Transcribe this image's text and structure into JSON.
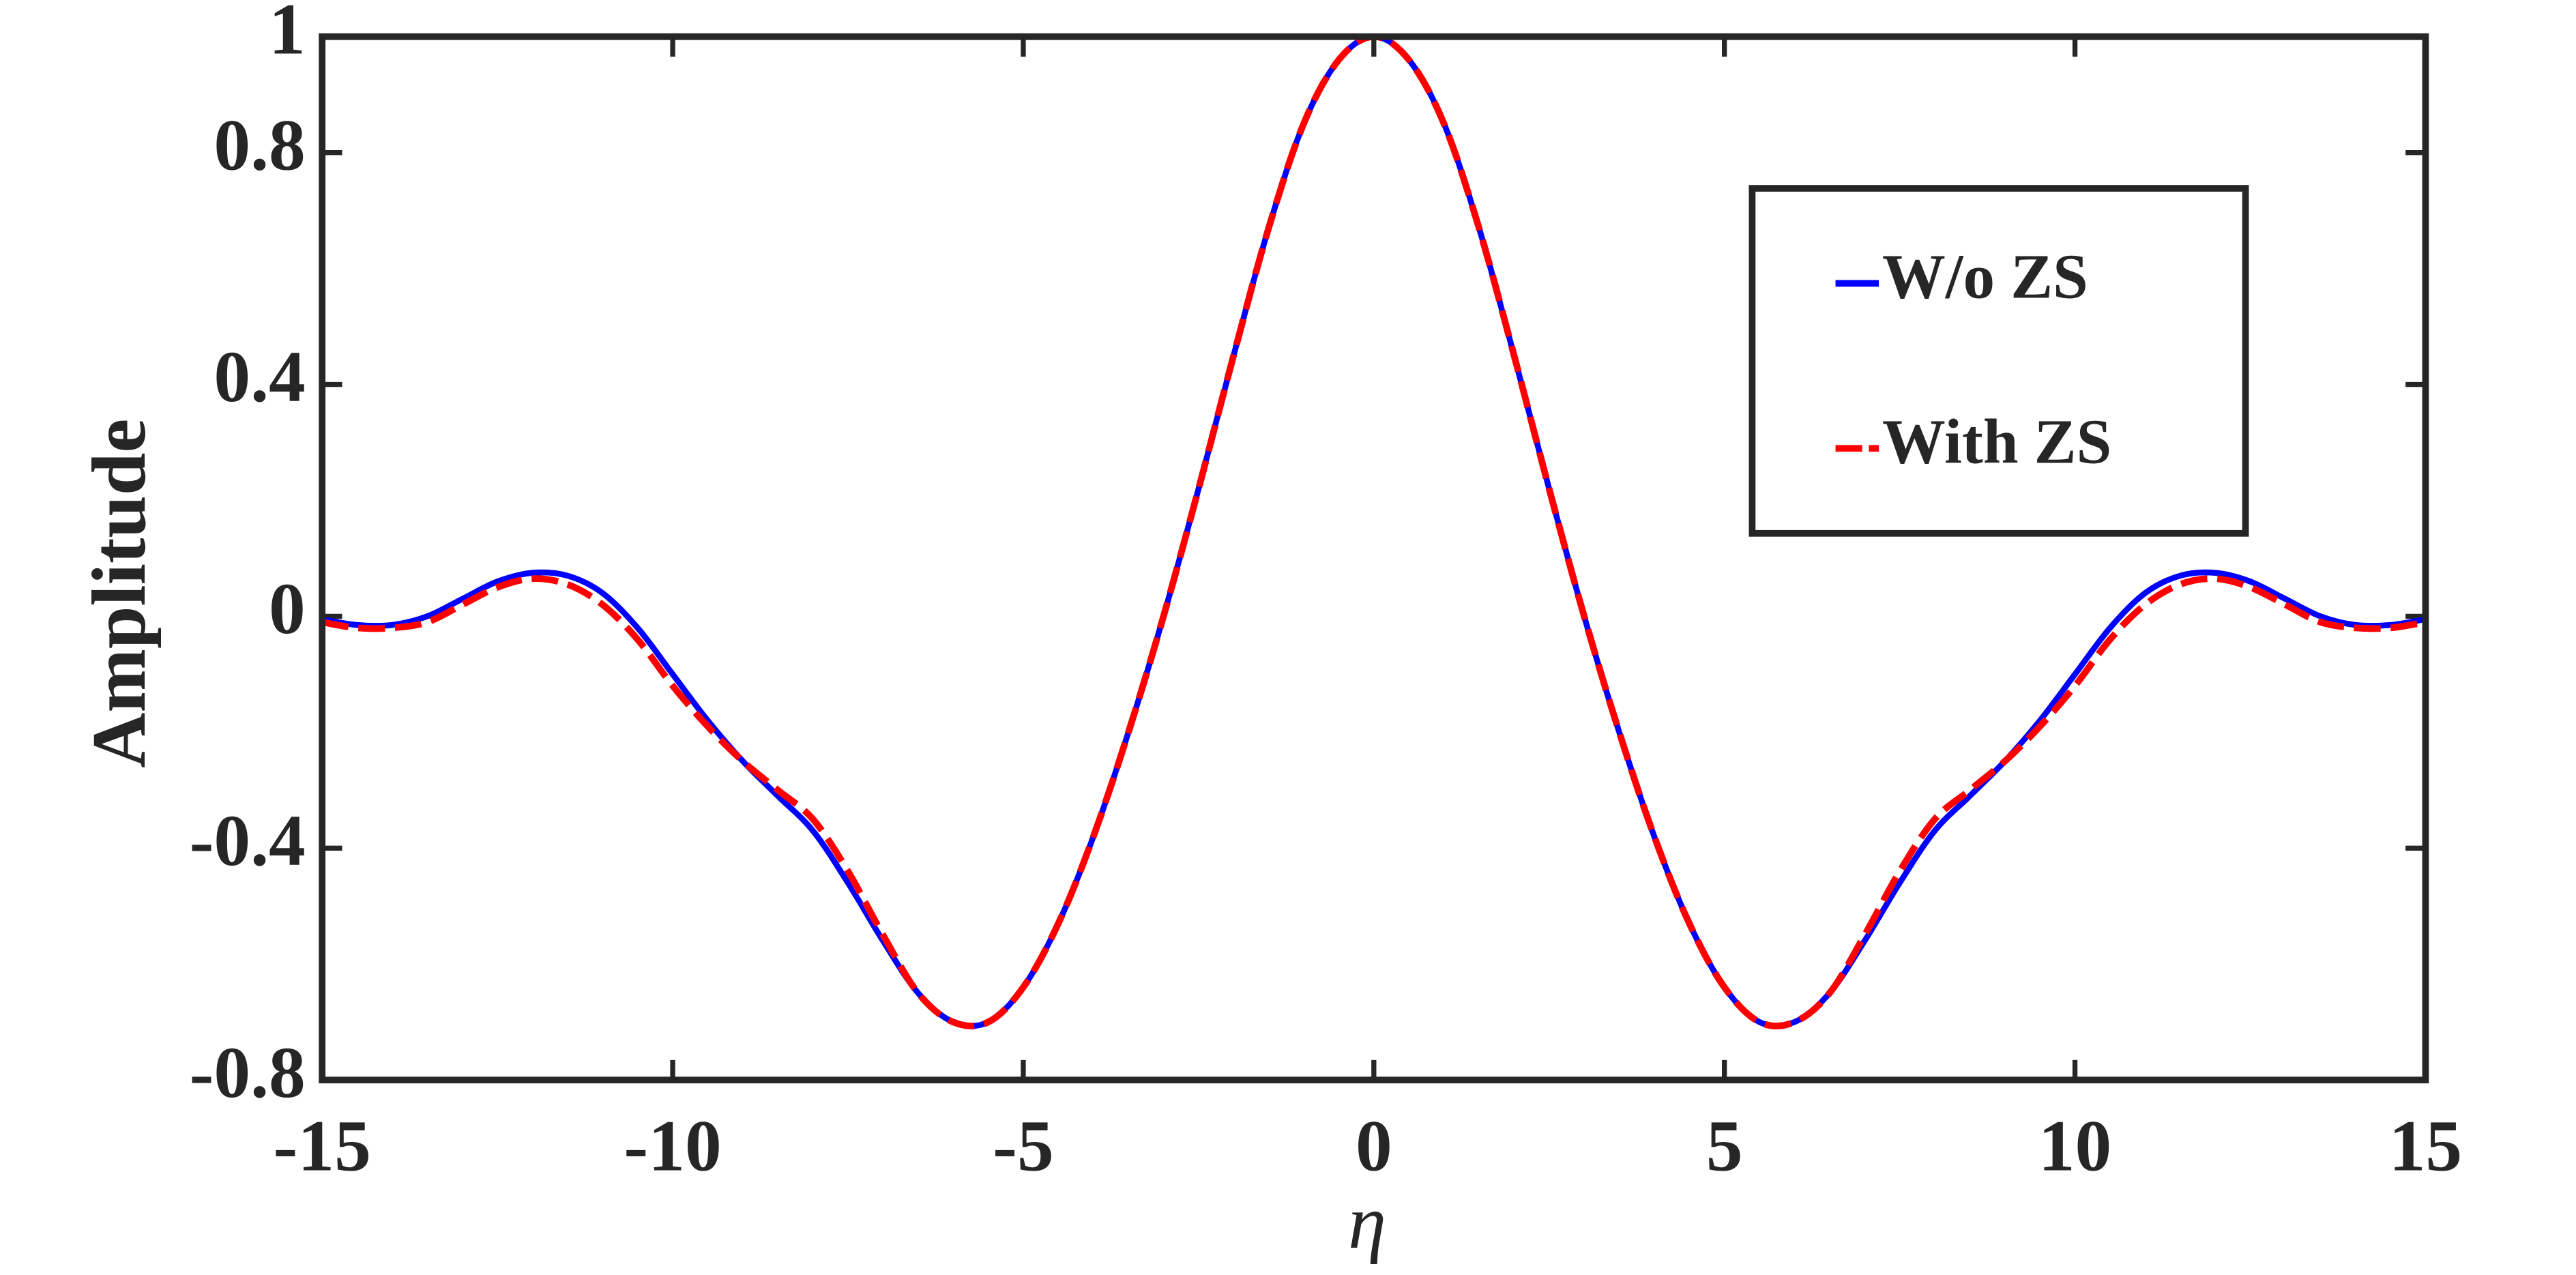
{
  "chart_data": {
    "type": "line",
    "xlabel": "η",
    "ylabel": "Amplitude",
    "x": [
      -15,
      -14.5,
      -14,
      -13.5,
      -13,
      -12.5,
      -12,
      -11.5,
      -11,
      -10.5,
      -10,
      -9.5,
      -9,
      -8.5,
      -8,
      -7.5,
      -7,
      -6.5,
      -6,
      -5.5,
      -5,
      -4.5,
      -4,
      -3.5,
      -3,
      -2.5,
      -2,
      -1.5,
      -1,
      -0.5,
      0,
      0.5,
      1,
      1.5,
      2,
      2.5,
      3,
      3.5,
      4,
      4.5,
      5,
      5.5,
      6,
      6.5,
      7,
      7.5,
      8,
      8.5,
      9,
      9.5,
      10,
      10.5,
      11,
      11.5,
      12,
      12.5,
      13,
      13.5,
      14,
      14.5,
      15
    ],
    "series": [
      {
        "name": "W/o ZS",
        "color": "#0000ff",
        "dash": false,
        "values": [
          -0.005,
          -0.015,
          -0.015,
          0.0,
          0.03,
          0.06,
          0.075,
          0.07,
          0.04,
          -0.02,
          -0.1,
          -0.18,
          -0.25,
          -0.31,
          -0.37,
          -0.46,
          -0.56,
          -0.65,
          -0.7,
          -0.7,
          -0.64,
          -0.53,
          -0.38,
          -0.2,
          0.0,
          0.22,
          0.45,
          0.67,
          0.85,
          0.96,
          1.0,
          0.96,
          0.85,
          0.67,
          0.45,
          0.22,
          0.0,
          -0.2,
          -0.38,
          -0.53,
          -0.64,
          -0.7,
          -0.7,
          -0.65,
          -0.56,
          -0.46,
          -0.37,
          -0.31,
          -0.25,
          -0.18,
          -0.1,
          -0.02,
          0.04,
          0.07,
          0.075,
          0.06,
          0.03,
          0.0,
          -0.015,
          -0.015,
          -0.005
        ]
      },
      {
        "name": "With ZS",
        "color": "#ff0000",
        "dash": true,
        "values": [
          -0.01,
          -0.02,
          -0.02,
          -0.01,
          0.02,
          0.05,
          0.065,
          0.055,
          0.02,
          -0.04,
          -0.12,
          -0.19,
          -0.25,
          -0.3,
          -0.35,
          -0.44,
          -0.55,
          -0.65,
          -0.7,
          -0.7,
          -0.64,
          -0.53,
          -0.38,
          -0.2,
          0.0,
          0.22,
          0.45,
          0.67,
          0.85,
          0.96,
          1.0,
          0.96,
          0.85,
          0.67,
          0.45,
          0.22,
          0.0,
          -0.2,
          -0.38,
          -0.53,
          -0.64,
          -0.7,
          -0.7,
          -0.65,
          -0.55,
          -0.44,
          -0.35,
          -0.3,
          -0.25,
          -0.19,
          -0.12,
          -0.04,
          0.02,
          0.055,
          0.065,
          0.05,
          0.02,
          -0.01,
          -0.02,
          -0.02,
          -0.01
        ]
      }
    ],
    "xlim": [
      -15,
      15
    ],
    "xticks": [
      -15,
      -10,
      -5,
      0,
      5,
      10,
      15
    ],
    "ylim": [
      -0.8,
      1
    ],
    "yticks": [
      -0.8,
      -0.4,
      0,
      0.4,
      0.8,
      1
    ],
    "grid": false,
    "legend": "northeast"
  }
}
